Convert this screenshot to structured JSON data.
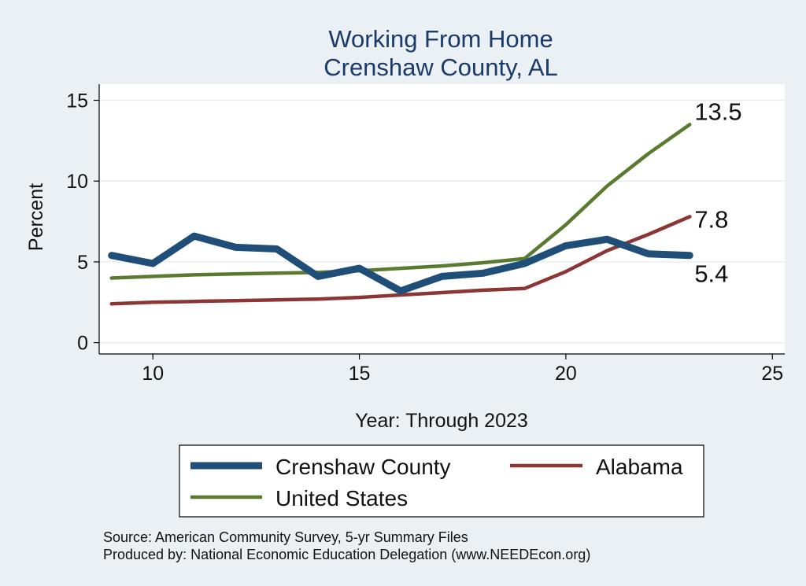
{
  "chart_data": {
    "type": "line",
    "title": [
      "Working From Home",
      "Crenshaw County, AL"
    ],
    "xlabel": "Year: Through 2023",
    "ylabel": "Percent",
    "xlim": [
      8.7,
      25.3
    ],
    "ylim": [
      -0.7,
      16.0
    ],
    "xticks": [
      10,
      15,
      20,
      25
    ],
    "yticks": [
      0,
      5,
      10,
      15
    ],
    "grid": true,
    "x": [
      9,
      10,
      11,
      12,
      13,
      14,
      15,
      16,
      17,
      18,
      19,
      20,
      21,
      22,
      23
    ],
    "series": [
      {
        "name": "Crenshaw County",
        "color": "#1f4e79",
        "values": [
          5.4,
          4.9,
          6.6,
          5.9,
          5.8,
          4.1,
          4.6,
          3.2,
          4.1,
          4.3,
          4.9,
          6.0,
          6.4,
          5.5,
          5.4
        ],
        "end_label": "5.4"
      },
      {
        "name": "Alabama",
        "color": "#8c3535",
        "values": [
          2.4,
          2.5,
          2.55,
          2.6,
          2.65,
          2.7,
          2.8,
          2.95,
          3.1,
          3.25,
          3.35,
          4.4,
          5.7,
          6.7,
          7.8
        ],
        "end_label": "7.8"
      },
      {
        "name": "United States",
        "color": "#5a7a30",
        "values": [
          4.0,
          4.1,
          4.2,
          4.25,
          4.3,
          4.35,
          4.45,
          4.6,
          4.75,
          4.95,
          5.2,
          7.3,
          9.7,
          11.7,
          13.5
        ],
        "end_label": "13.5"
      }
    ],
    "legend_position": "bottom",
    "notes": [
      "Source: American Community Survey, 5-yr Summary Files",
      "Produced by: National Economic Education Delegation (www.NEEDEcon.org)"
    ]
  }
}
